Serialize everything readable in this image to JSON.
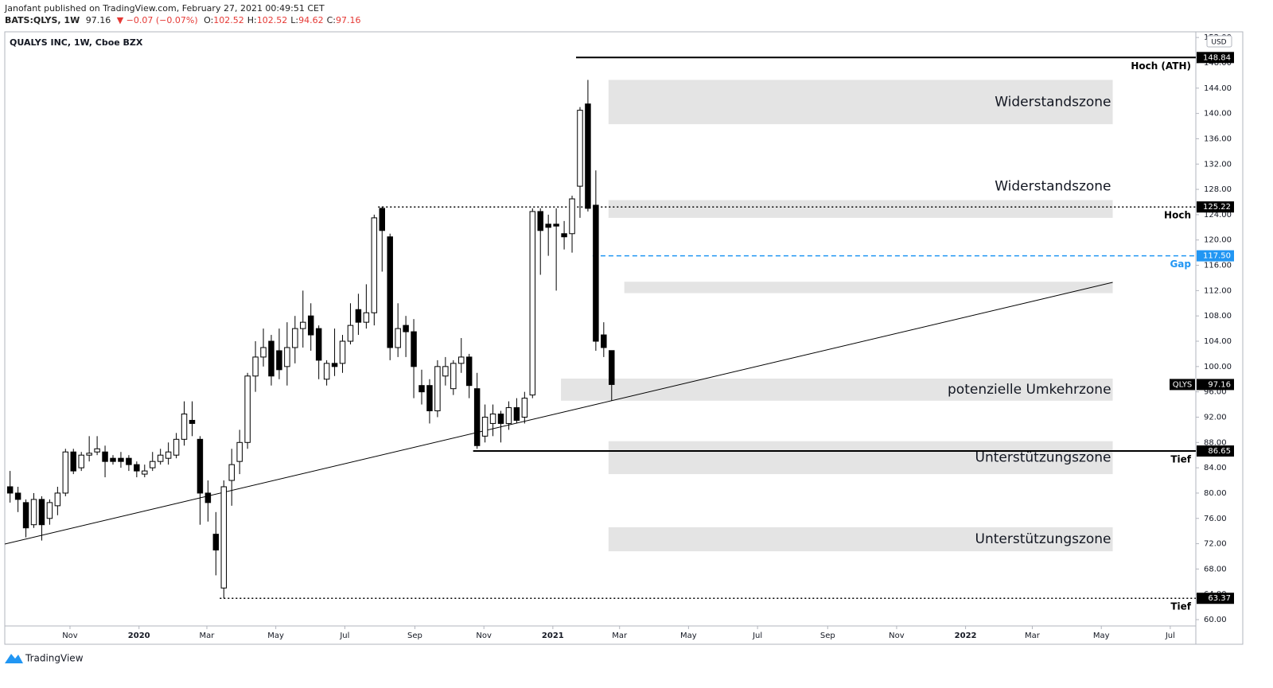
{
  "header": {
    "author_line": "Janofant published on TradingView.com, February 27, 2021 00:49:51 CET",
    "symbol": "BATS:QLYS, 1W",
    "last": "97.16",
    "change": "▼ −0.07 (−0.07%)",
    "ohlc": [
      {
        "label": "O:",
        "value": "102.52"
      },
      {
        "label": "H:",
        "value": "102.52"
      },
      {
        "label": "L:",
        "value": "94.62"
      },
      {
        "label": "C:",
        "value": "97.16"
      }
    ]
  },
  "footer": {
    "brand": "TradingView"
  },
  "chart_data": {
    "type": "candlestick",
    "title": "QUALYS INC, 1W, Cboe BZX",
    "currency": "USD",
    "categories": [
      null,
      null,
      null,
      null,
      null,
      null,
      null,
      null,
      null,
      null,
      null,
      null,
      null,
      null,
      null,
      null,
      null,
      null,
      null,
      null,
      null,
      null,
      null,
      null,
      null,
      null,
      null,
      null,
      null,
      null,
      null,
      null,
      null,
      null,
      null,
      null,
      null,
      null,
      null,
      null,
      null,
      null,
      null,
      null,
      null,
      null,
      null,
      null,
      null,
      null,
      null,
      null,
      null,
      null,
      null,
      null,
      null,
      null,
      null,
      null,
      null,
      null,
      null,
      null,
      null,
      null,
      null,
      null,
      null,
      null,
      null,
      null,
      null,
      null,
      null,
      null,
      null
    ],
    "open": [
      81,
      80,
      78.5,
      75,
      79,
      76,
      78,
      80,
      86.5,
      84,
      86,
      86.5,
      86.5,
      85.5,
      85.5,
      85.5,
      84.5,
      83,
      84,
      85,
      85.5,
      86,
      88.5,
      91.5,
      88.5,
      80,
      73.5,
      65,
      82,
      85,
      88,
      98.5,
      101.5,
      104,
      102.5,
      100,
      103,
      106,
      108,
      106,
      98,
      100.5,
      100.5,
      104,
      109,
      107,
      108.5,
      125,
      120.5,
      103,
      106.5,
      105.5,
      97,
      97,
      93,
      98.5,
      96.5,
      100.5,
      101.5,
      96.5,
      89,
      91,
      92.5,
      91,
      93.5,
      92,
      95.5,
      124.5,
      122.5,
      122.5,
      121,
      121,
      128.5,
      141.5,
      125.5,
      105,
      102.52
    ],
    "high": [
      83.5,
      81,
      79,
      80,
      79.5,
      79,
      81,
      87,
      87,
      86.5,
      89,
      89,
      87.5,
      86,
      86.5,
      86,
      85,
      84.5,
      86.5,
      87,
      88,
      89.5,
      94.5,
      94.5,
      89,
      82,
      77,
      82,
      87,
      90,
      99,
      104,
      106,
      105,
      106,
      107,
      108,
      112,
      110,
      106.5,
      101,
      106,
      105,
      110,
      111.5,
      113,
      124,
      125.3,
      121,
      110,
      108,
      107.5,
      99.5,
      98,
      101,
      101.5,
      101,
      104.5,
      102,
      99,
      94,
      94,
      93,
      94.5,
      95,
      96,
      125,
      125,
      124,
      125,
      123,
      127,
      141,
      145.3,
      131,
      107,
      102.52
    ],
    "low": [
      78.5,
      77,
      73,
      74.5,
      72.5,
      75,
      76.5,
      79.5,
      83,
      83.5,
      85,
      86,
      82.5,
      84.5,
      84,
      83.5,
      82.5,
      82.5,
      83.5,
      84.5,
      84.5,
      85.5,
      87.5,
      89,
      75,
      75.5,
      67,
      63.37,
      78,
      83,
      87,
      96,
      100,
      97,
      98,
      97,
      100.5,
      103,
      102.5,
      98,
      97,
      98.5,
      99,
      103.5,
      105,
      106,
      106.5,
      115,
      101,
      101.5,
      101.5,
      95,
      94,
      91,
      92,
      97,
      95.5,
      99,
      95,
      87,
      88,
      89,
      88,
      90,
      91,
      91,
      95,
      114.5,
      117.5,
      112,
      118.5,
      118,
      123.5,
      124.5,
      102.5,
      101.5,
      94.62
    ],
    "close": [
      80,
      79,
      74.5,
      79,
      75,
      78.5,
      80,
      86.5,
      83.5,
      86,
      86.3,
      87,
      85,
      85,
      85,
      84.5,
      83.5,
      83.5,
      85,
      86,
      86.5,
      88.5,
      92.5,
      91,
      80,
      78.5,
      71,
      81,
      84.5,
      88,
      98.5,
      101.5,
      103,
      98.5,
      99.5,
      103,
      106,
      107,
      105,
      101,
      100.5,
      100,
      104,
      106.5,
      107,
      108.5,
      123.5,
      121.5,
      103,
      106,
      105.5,
      100,
      96,
      93,
      100,
      100,
      100.5,
      101.5,
      97,
      87.5,
      92,
      92.5,
      91,
      93.5,
      91.5,
      95,
      124.5,
      121.5,
      122,
      122.2,
      120.5,
      126.5,
      140.5,
      125,
      104,
      103,
      97.16
    ],
    "up_color": "#ffffff",
    "down_color": "#000000",
    "outline_color": "#000000",
    "xlim": [
      -0.67,
      149.8
    ],
    "xticks": [
      {
        "value": 7.57,
        "label": "Nov"
      },
      {
        "value": 16.29,
        "label": "2020"
      },
      {
        "value": 24.86,
        "label": "Mar"
      },
      {
        "value": 33.57,
        "label": "May"
      },
      {
        "value": 42.29,
        "label": "Jul"
      },
      {
        "value": 51.14,
        "label": "Sep"
      },
      {
        "value": 59.86,
        "label": "Nov"
      },
      {
        "value": 68.57,
        "label": "2021"
      },
      {
        "value": 77.0,
        "label": "Mar"
      },
      {
        "value": 85.71,
        "label": "May"
      },
      {
        "value": 94.43,
        "label": "Jul"
      },
      {
        "value": 103.29,
        "label": "Sep"
      },
      {
        "value": 112.0,
        "label": "Nov"
      },
      {
        "value": 120.71,
        "label": "2022"
      },
      {
        "value": 129.14,
        "label": "Mar"
      },
      {
        "value": 137.86,
        "label": "May"
      },
      {
        "value": 146.57,
        "label": "Jul"
      }
    ],
    "ylim": [
      59.0,
      152.9
    ],
    "yticks": [
      {
        "value": 60,
        "label": "60.00"
      },
      {
        "value": 64,
        "label": "64.00"
      },
      {
        "value": 68,
        "label": "68.00"
      },
      {
        "value": 72,
        "label": "72.00"
      },
      {
        "value": 76,
        "label": "76.00"
      },
      {
        "value": 80,
        "label": "80.00"
      },
      {
        "value": 84,
        "label": "84.00"
      },
      {
        "value": 88,
        "label": "88.00"
      },
      {
        "value": 92,
        "label": "92.00"
      },
      {
        "value": 96,
        "label": "96.00"
      },
      {
        "value": 100,
        "label": "100.00"
      },
      {
        "value": 104,
        "label": "104.00"
      },
      {
        "value": 108,
        "label": "108.00"
      },
      {
        "value": 112,
        "label": "112.00"
      },
      {
        "value": 116,
        "label": "116.00"
      },
      {
        "value": 120,
        "label": "120.00"
      },
      {
        "value": 124,
        "label": "124.00"
      },
      {
        "value": 128,
        "label": "128.00"
      },
      {
        "value": 132,
        "label": "132.00"
      },
      {
        "value": 136,
        "label": "136.00"
      },
      {
        "value": 140,
        "label": "140.00"
      },
      {
        "value": 144,
        "label": "144.00"
      },
      {
        "value": 148,
        "label": "148.00"
      },
      {
        "value": 152,
        "label": "152.00"
      }
    ],
    "last_price": {
      "value": 97.16,
      "symbol": "QLYS"
    },
    "zone_color": "#e4e4e4",
    "zones": [
      {
        "label": "Widerstandszone",
        "top": 145.3,
        "bottom": 138.3,
        "from": 75.6,
        "to": 139.3
      },
      {
        "label": "Widerstandszone",
        "top": 126.3,
        "bottom": 123.5,
        "from": 75.6,
        "to": 139.3,
        "label_position": "above"
      },
      {
        "top": 113.4,
        "bottom": 111.6,
        "from": 77.6,
        "to": 139.3
      },
      {
        "label": "potenzielle Umkehrzone",
        "top": 98.1,
        "bottom": 94.6,
        "from": 69.6,
        "to": 139.3
      },
      {
        "label": "Unterstützungszone",
        "top": 88.2,
        "bottom": 83.0,
        "from": 75.6,
        "to": 139.3
      },
      {
        "label": "Unterstützungszone",
        "top": 74.6,
        "bottom": 70.8,
        "from": 75.6,
        "to": 139.3
      }
    ],
    "levels": [
      {
        "price": 148.84,
        "name": "Hoch (ATH)",
        "from": 71.5,
        "style": "solid",
        "color": "#000000"
      },
      {
        "price": 125.22,
        "name": "Hoch",
        "from": 46.5,
        "style": "dotted",
        "color": "#000000"
      },
      {
        "price": {
          "value": 117.5,
          "label": "117.50"
        },
        "name": "Gap",
        "from": 73.6,
        "style": "dashed",
        "color": "#2196f3"
      },
      {
        "price": 86.65,
        "name": "Tief",
        "from": 58.5,
        "style": "solid",
        "color": "#000000"
      },
      {
        "price": 63.37,
        "name": "Tief",
        "from": 26.5,
        "style": "dotted",
        "color": "#000000"
      }
    ],
    "trendline": {
      "x": [
        -0.67,
        139.3
      ],
      "y": [
        71.95,
        113.3
      ],
      "color": "#000000"
    }
  }
}
